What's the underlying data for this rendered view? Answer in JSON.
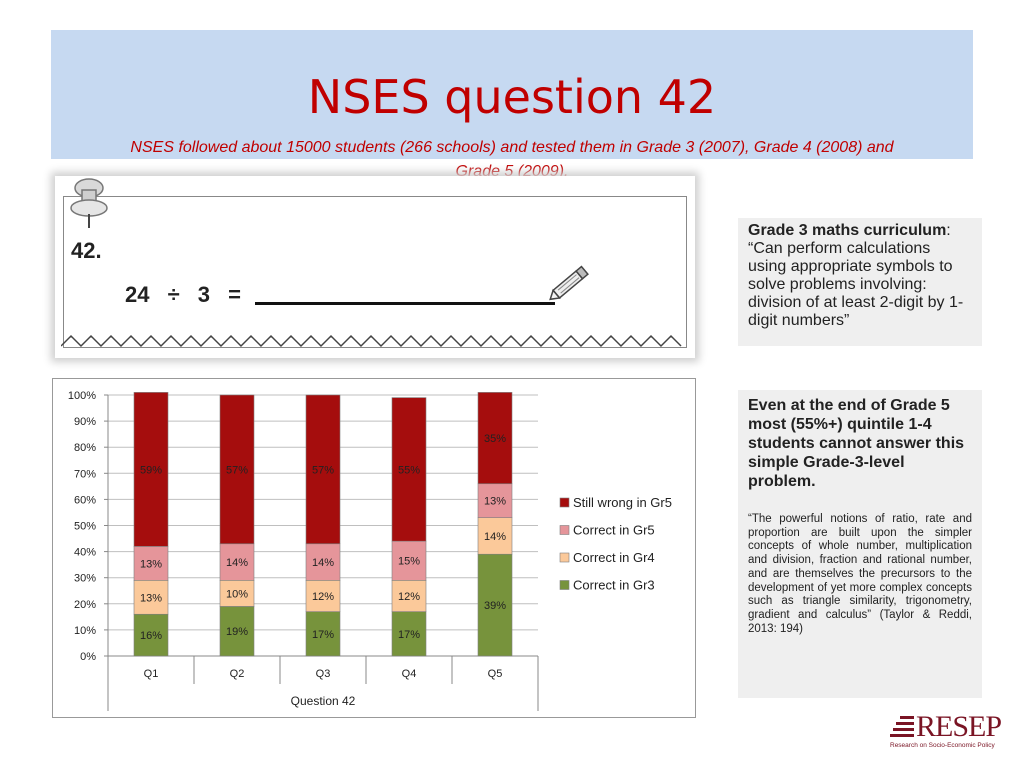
{
  "header": {
    "title": "NSES question 42",
    "subtitle": "NSES followed about 15000 students (266 schools) and tested them in Grade 3 (2007), Grade 4 (2008) and Grade 5 (2009)."
  },
  "worksheet": {
    "number": "42.",
    "problem": "24 ÷ 3 ="
  },
  "curriculum": {
    "label": "Grade 3 maths curriculum",
    "text": ": “Can perform calculations using appropriate symbols to solve problems involving: division of at least 2-digit by 1-digit numbers”"
  },
  "insight": {
    "headline": "Even at the end of Grade 5 most (55%+) quintile 1-4 students cannot answer this simple Grade-3-level problem.",
    "quote": "“The powerful notions of ratio, rate and proportion are built upon the simpler concepts of whole number, multiplication and division, fraction and rational number, and are themselves the precursors to the development of yet more complex concepts such as triangle similarity, trigonometry, gradient and calculus” (Taylor & Reddi, 2013: 194)"
  },
  "logo": {
    "name": "RESEP",
    "tagline": "Research on Socio-Economic Policy"
  },
  "colors": {
    "title": "#c00000",
    "band": "#c6d9f1",
    "still_wrong": "#a50d0d",
    "gr5": "#e5959a",
    "gr4": "#fbc99a",
    "gr3": "#77933c"
  },
  "chart_data": {
    "type": "bar",
    "stacked": true,
    "categories": [
      "Q1",
      "Q2",
      "Q3",
      "Q4",
      "Q5"
    ],
    "xlabel": "Question 42",
    "ylabel": "",
    "ylim": [
      0,
      100
    ],
    "yticks": [
      "0%",
      "10%",
      "20%",
      "30%",
      "40%",
      "50%",
      "60%",
      "70%",
      "80%",
      "90%",
      "100%"
    ],
    "grid": true,
    "legend_position": "right",
    "series": [
      {
        "name": "Correct in Gr3",
        "color": "#77933c",
        "values": [
          16,
          19,
          17,
          17,
          39
        ],
        "labels": [
          "16%",
          "19%",
          "17%",
          "17%",
          "39%"
        ]
      },
      {
        "name": "Correct in Gr4",
        "color": "#fbc99a",
        "values": [
          13,
          10,
          12,
          12,
          14
        ],
        "labels": [
          "13%",
          "10%",
          "12%",
          "12%",
          "14%"
        ]
      },
      {
        "name": "Correct in Gr5",
        "color": "#e5959a",
        "values": [
          13,
          14,
          14,
          15,
          13
        ],
        "labels": [
          "13%",
          "14%",
          "14%",
          "15%",
          "13%"
        ]
      },
      {
        "name": "Still wrong in Gr5",
        "color": "#a50d0d",
        "values": [
          59,
          57,
          57,
          55,
          35
        ],
        "labels": [
          "59%",
          "57%",
          "57%",
          "55%",
          "35%"
        ]
      }
    ],
    "legend_order": [
      "Still wrong in Gr5",
      "Correct in Gr5",
      "Correct in Gr4",
      "Correct in Gr3"
    ]
  }
}
